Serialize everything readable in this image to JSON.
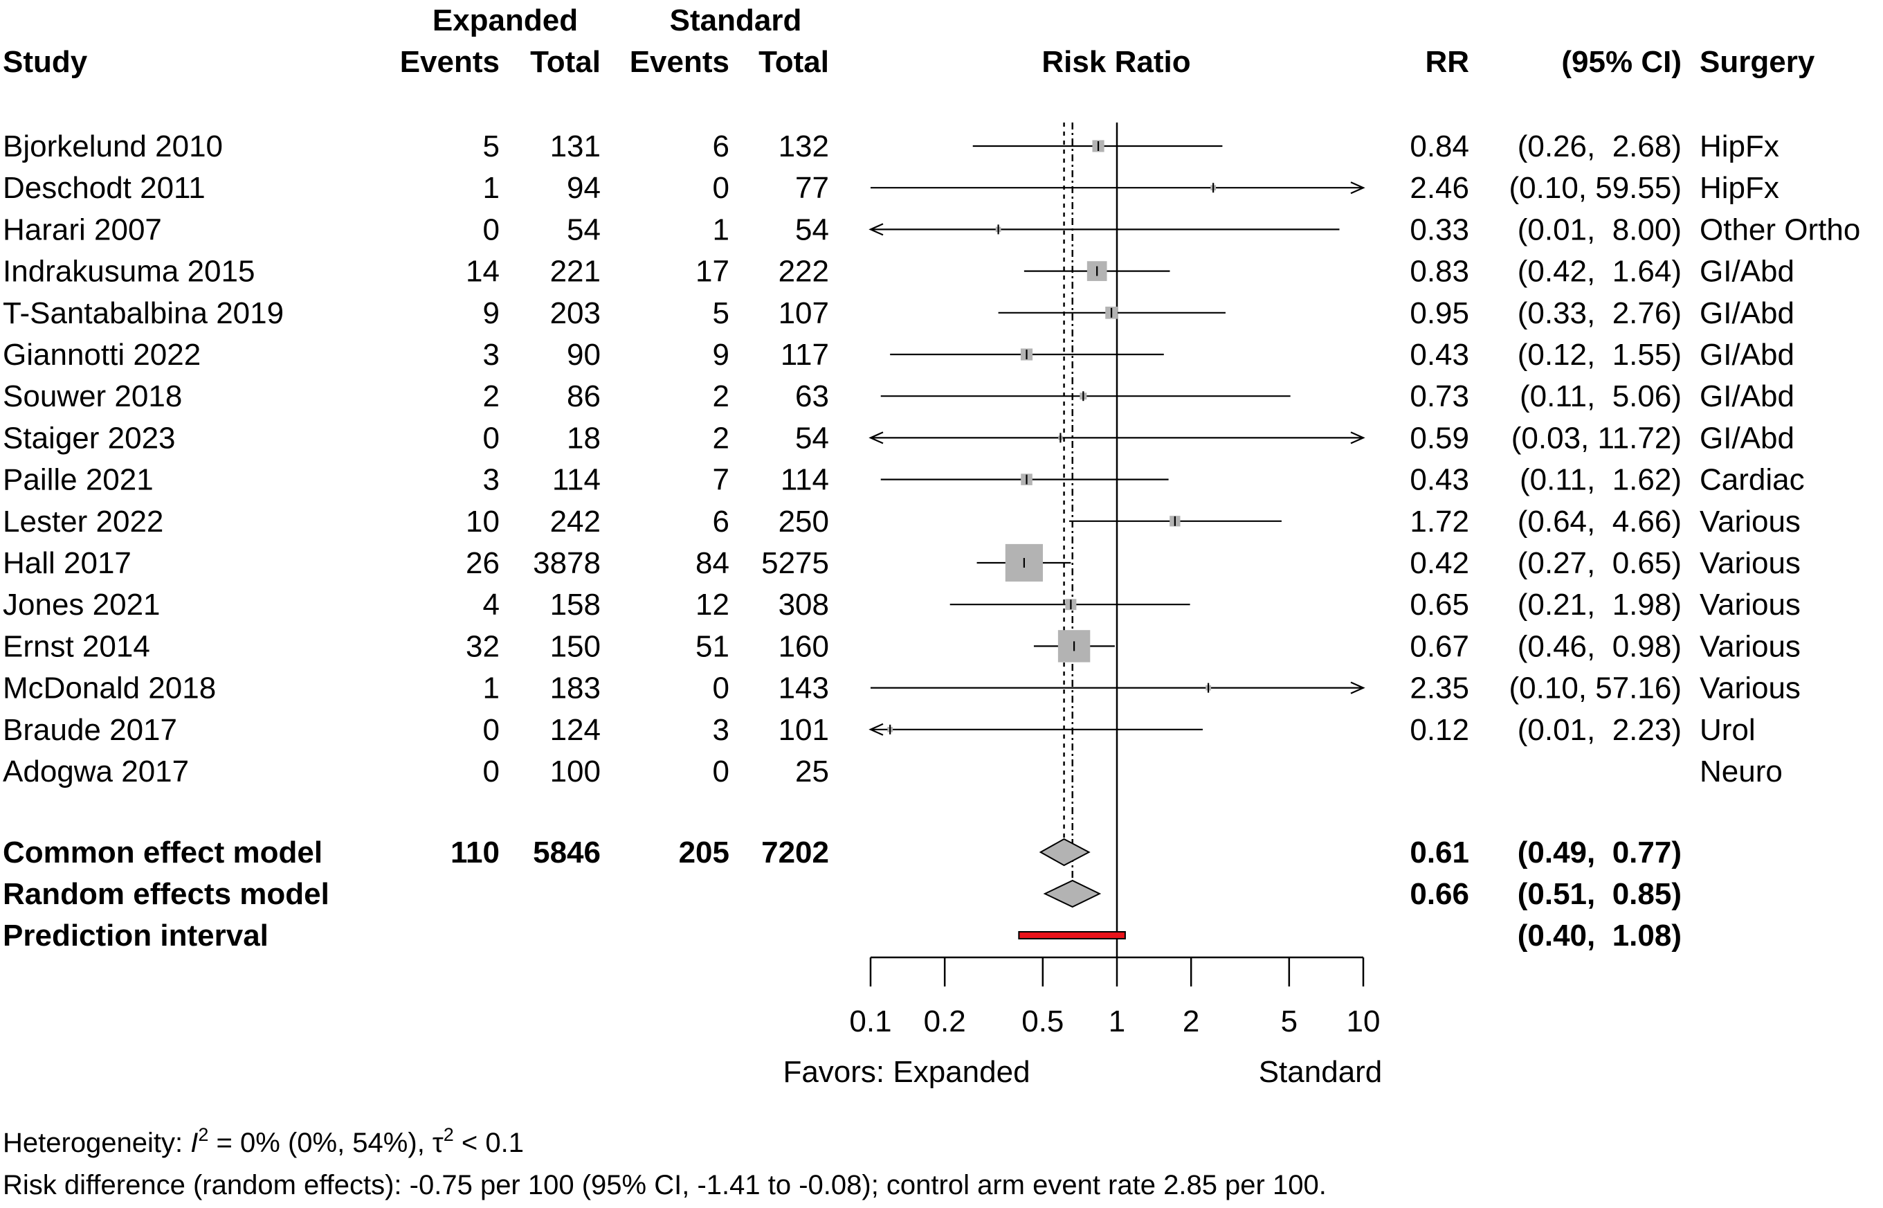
{
  "headers": {
    "expanded": "Expanded",
    "standard": "Standard",
    "study": "Study",
    "events": "Events",
    "total": "Total",
    "risk_ratio": "Risk Ratio",
    "rr": "RR",
    "ci": "(95% CI)",
    "surgery": "Surgery"
  },
  "chart_data": {
    "type": "forest",
    "xlabel_left": "Favors: Expanded",
    "xlabel_right": "Standard",
    "x_scale": "log",
    "xlim": [
      0.1,
      10
    ],
    "xticks": [
      0.1,
      0.2,
      0.5,
      1,
      2,
      5,
      10
    ],
    "xtick_labels": [
      "0.1",
      "0.2",
      "0.5",
      "1",
      "2",
      "5",
      "10"
    ],
    "reference_line": 1,
    "common_effect_line": 0.61,
    "random_effects_line": 0.66,
    "studies": [
      {
        "study": "Bjorkelund 2010",
        "exp_events": "5",
        "exp_total": "131",
        "std_events": "6",
        "std_total": "132",
        "rr": 0.84,
        "lower": 0.26,
        "upper": 2.68,
        "rr_text": "0.84",
        "ci_text": "(0.26,  2.68)",
        "surgery": "HipFx",
        "weight": 1.5
      },
      {
        "study": "Deschodt 2011",
        "exp_events": "1",
        "exp_total": "94",
        "std_events": "0",
        "std_total": "77",
        "rr": 2.46,
        "lower": 0.1,
        "upper": 59.55,
        "rr_text": "2.46",
        "ci_text": "(0.10, 59.55)",
        "surgery": "HipFx",
        "weight": 0.3
      },
      {
        "study": "Harari 2007",
        "exp_events": "0",
        "exp_total": "54",
        "std_events": "1",
        "std_total": "54",
        "rr": 0.33,
        "lower": 0.01,
        "upper": 8.0,
        "rr_text": "0.33",
        "ci_text": "(0.01,  8.00)",
        "surgery": "Other Ortho",
        "weight": 0.3
      },
      {
        "study": "Indrakusuma 2015",
        "exp_events": "14",
        "exp_total": "221",
        "std_events": "17",
        "std_total": "222",
        "rr": 0.83,
        "lower": 0.42,
        "upper": 1.64,
        "rr_text": "0.83",
        "ci_text": "(0.42,  1.64)",
        "surgery": "GI/Abd",
        "weight": 4.2
      },
      {
        "study": "T-Santabalbina 2019",
        "exp_events": "9",
        "exp_total": "203",
        "std_events": "5",
        "std_total": "107",
        "rr": 0.95,
        "lower": 0.33,
        "upper": 2.76,
        "rr_text": "0.95",
        "ci_text": "(0.33,  2.76)",
        "surgery": "GI/Abd",
        "weight": 1.6
      },
      {
        "study": "Giannotti 2022",
        "exp_events": "3",
        "exp_total": "90",
        "std_events": "9",
        "std_total": "117",
        "rr": 0.43,
        "lower": 0.12,
        "upper": 1.55,
        "rr_text": "0.43",
        "ci_text": "(0.12,  1.55)",
        "surgery": "GI/Abd",
        "weight": 1.5
      },
      {
        "study": "Souwer 2018",
        "exp_events": "2",
        "exp_total": "86",
        "std_events": "2",
        "std_total": "63",
        "rr": 0.73,
        "lower": 0.11,
        "upper": 5.06,
        "rr_text": "0.73",
        "ci_text": "(0.11,  5.06)",
        "surgery": "GI/Abd",
        "weight": 0.5
      },
      {
        "study": "Staiger 2023",
        "exp_events": "0",
        "exp_total": "18",
        "std_events": "2",
        "std_total": "54",
        "rr": 0.59,
        "lower": 0.03,
        "upper": 11.72,
        "rr_text": "0.59",
        "ci_text": "(0.03, 11.72)",
        "surgery": "GI/Abd",
        "weight": 0.2
      },
      {
        "study": "Paille 2021",
        "exp_events": "3",
        "exp_total": "114",
        "std_events": "7",
        "std_total": "114",
        "rr": 0.43,
        "lower": 0.11,
        "upper": 1.62,
        "rr_text": "0.43",
        "ci_text": "(0.11,  1.62)",
        "surgery": "Cardiac",
        "weight": 1.4
      },
      {
        "study": "Lester 2022",
        "exp_events": "10",
        "exp_total": "242",
        "std_events": "6",
        "std_total": "250",
        "rr": 1.72,
        "lower": 0.64,
        "upper": 4.66,
        "rr_text": "1.72",
        "ci_text": "(0.64,  4.66)",
        "surgery": "Various",
        "weight": 1.2
      },
      {
        "study": "Hall 2017",
        "exp_events": "26",
        "exp_total": "3878",
        "std_events": "84",
        "std_total": "5275",
        "rr": 0.42,
        "lower": 0.27,
        "upper": 0.65,
        "rr_text": "0.42",
        "ci_text": "(0.27,  0.65)",
        "surgery": "Various",
        "weight": 15.0
      },
      {
        "study": "Jones 2021",
        "exp_events": "4",
        "exp_total": "158",
        "std_events": "12",
        "std_total": "308",
        "rr": 0.65,
        "lower": 0.21,
        "upper": 1.98,
        "rr_text": "0.65",
        "ci_text": "(0.21,  1.98)",
        "surgery": "Various",
        "weight": 1.3
      },
      {
        "study": "Ernst 2014",
        "exp_events": "32",
        "exp_total": "150",
        "std_events": "51",
        "std_total": "160",
        "rr": 0.67,
        "lower": 0.46,
        "upper": 0.98,
        "rr_text": "0.67",
        "ci_text": "(0.46,  0.98)",
        "surgery": "Various",
        "weight": 11.0
      },
      {
        "study": "McDonald 2018",
        "exp_events": "1",
        "exp_total": "183",
        "std_events": "0",
        "std_total": "143",
        "rr": 2.35,
        "lower": 0.1,
        "upper": 57.16,
        "rr_text": "2.35",
        "ci_text": "(0.10, 57.16)",
        "surgery": "Various",
        "weight": 0.3
      },
      {
        "study": "Braude 2017",
        "exp_events": "0",
        "exp_total": "124",
        "std_events": "3",
        "std_total": "101",
        "rr": 0.12,
        "lower": 0.01,
        "upper": 2.23,
        "rr_text": "0.12",
        "ci_text": "(0.01,  2.23)",
        "surgery": "Urol",
        "weight": 0.3
      },
      {
        "study": "Adogwa 2017",
        "exp_events": "0",
        "exp_total": "100",
        "std_events": "0",
        "std_total": "25",
        "rr": null,
        "lower": null,
        "upper": null,
        "rr_text": "",
        "ci_text": "",
        "surgery": "Neuro",
        "weight": 0
      }
    ],
    "summaries": [
      {
        "label": "Common effect model",
        "exp_events": "110",
        "exp_total": "5846",
        "std_events": "205",
        "std_total": "7202",
        "rr": 0.61,
        "lower": 0.49,
        "upper": 0.77,
        "rr_text": "0.61",
        "ci_text": "(0.49,  0.77)"
      },
      {
        "label": "Random effects model",
        "exp_events": "",
        "exp_total": "",
        "std_events": "",
        "std_total": "",
        "rr": 0.66,
        "lower": 0.51,
        "upper": 0.85,
        "rr_text": "0.66",
        "ci_text": "(0.51,  0.85)"
      }
    ],
    "prediction_interval": {
      "label": "Prediction interval",
      "lower": 0.4,
      "upper": 1.08,
      "ci_text": "(0.40,  1.08)"
    },
    "colors": {
      "square": "#b3b3b3",
      "diamond": "#b3b3b3",
      "prediction": "#e8141b"
    }
  },
  "footnotes": {
    "heterogeneity_prefix": "Heterogeneity: ",
    "i2_symbol": "I",
    "superscript": "2",
    "i2_value": " = 0% (0%, 54%), ",
    "tau_symbol": "τ",
    "tau_value": " < 0.1",
    "risk_difference": "Risk difference (random effects): -0.75 per 100 (95% CI, -1.41 to -0.08); control arm event rate 2.85 per 100."
  }
}
